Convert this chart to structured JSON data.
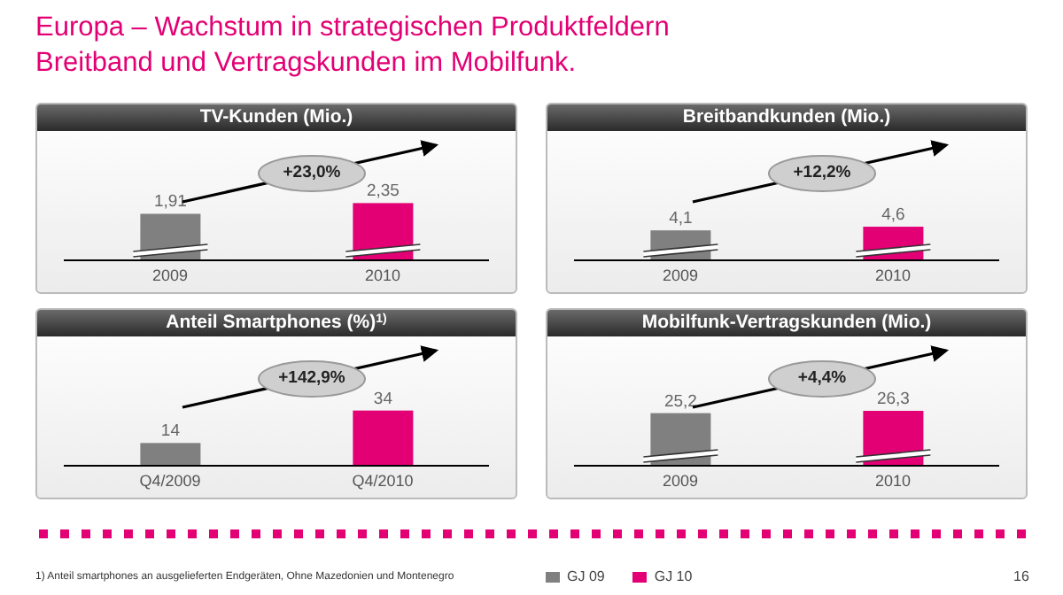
{
  "chart_data": [
    {
      "type": "bar",
      "title": "TV-Kunden (Mio.)",
      "categories": [
        "2009",
        "2010"
      ],
      "stacked": true,
      "legend": false,
      "series": [
        {
          "color": "#808080",
          "values": [
            1.91,
            null
          ],
          "value_labels": [
            "1,91",
            null
          ]
        },
        {
          "color": "#e20074",
          "values": [
            null,
            2.35
          ],
          "value_labels": [
            null,
            "2,35"
          ]
        }
      ],
      "annotations": [
        "+23,0%",
        "Europa – Wachstum in strategischen Produktfeldern",
        "Breitband und Vertragskunden im Mobilfunk."
      ]
    },
    {
      "type": "bar",
      "title": "Breitbandkunden (Mio.)",
      "categories": [
        "2009",
        "2010"
      ],
      "stacked": true,
      "legend": false,
      "series": [
        {
          "color": "#808080",
          "values": [
            4.1,
            null
          ],
          "value_labels": [
            "4,1",
            null
          ]
        },
        {
          "color": "#e20074",
          "values": [
            null,
            4.6
          ],
          "value_labels": [
            null,
            "4,6"
          ]
        }
      ],
      "annotations": [
        "+12,2%"
      ]
    },
    {
      "type": "bar",
      "title": "Anteil Smartphones (%)$^{1)}$",
      "categories": [
        "Q4/2009",
        "Q4/2010"
      ],
      "stacked": true,
      "legend": false,
      "series": [
        {
          "color": "#808080",
          "values": [
            14,
            null
          ],
          "value_labels": [
            "14",
            null
          ]
        },
        {
          "color": "#e20074",
          "values": [
            null,
            34
          ],
          "value_labels": [
            null,
            "34"
          ]
        }
      ],
      "annotations": [
        "+142,9%",
        "1) Anteil smartphones an ausgelieferten Endgeräten, Ohne Mazedonien und Montenegro"
      ]
    },
    {
      "type": "bar",
      "title": "Mobilfunk-Vertragskunden (Mio.)",
      "categories": [
        "2009",
        "2010"
      ],
      "stacked": true,
      "legend": "bottom",
      "series": [
        {
          "name": "GJ 09",
          "color": "#808080",
          "values": [
            25.2,
            null
          ],
          "value_labels": [
            "25,2",
            null
          ]
        },
        {
          "name": "GJ 10",
          "color": "#e20074",
          "values": [
            null,
            26.3
          ],
          "value_labels": [
            null,
            "26,3"
          ]
        }
      ],
      "annotations": [
        "+4,4%",
        "16"
      ]
    }
  ]
}
